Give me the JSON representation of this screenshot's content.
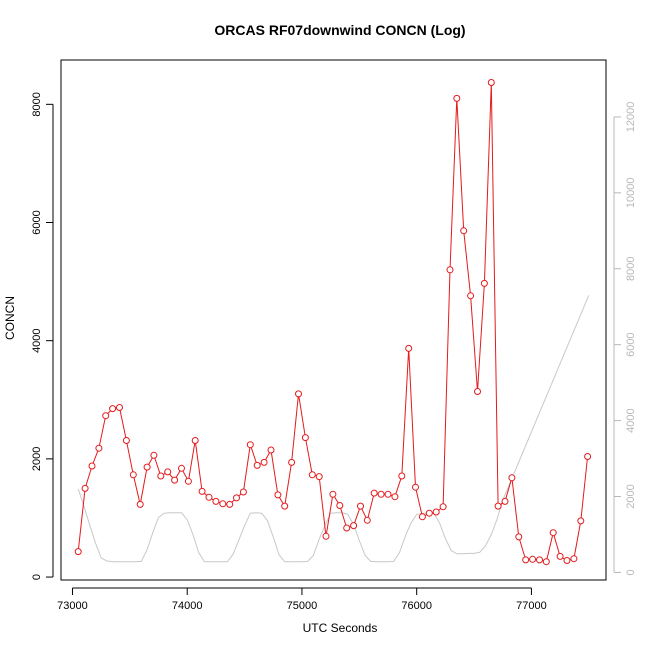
{
  "chart_data": {
    "type": "line",
    "title": "ORCAS RF07downwind CONCN (Log)",
    "xlabel": "UTC Seconds",
    "ylabel": "CONCN",
    "xlim": [
      72900,
      77650
    ],
    "ylim": [
      -50,
      8750
    ],
    "y2lim": [
      -200,
      13500
    ],
    "x_ticks": [
      73000,
      74000,
      75000,
      76000,
      77000
    ],
    "y_ticks": [
      0,
      2000,
      4000,
      6000,
      8000
    ],
    "y2_ticks": [
      0,
      2000,
      4000,
      6000,
      8000,
      10000,
      12000
    ],
    "grid": false,
    "legend": "none",
    "colors": {
      "primary": "#e41a1c",
      "secondary": "#c8c8c8",
      "axis": "#000000",
      "right_axis": "#b8b8b8"
    },
    "series": [
      {
        "axis": "left",
        "marker": "open-circle",
        "x": [
          73050,
          73110,
          73170,
          73230,
          73290,
          73350,
          73410,
          73470,
          73530,
          73590,
          73650,
          73710,
          73770,
          73830,
          73890,
          73950,
          74010,
          74070,
          74130,
          74190,
          74250,
          74310,
          74370,
          74430,
          74490,
          74550,
          74610,
          74670,
          74730,
          74790,
          74850,
          74910,
          74970,
          75030,
          75090,
          75150,
          75210,
          75270,
          75330,
          75390,
          75450,
          75510,
          75570,
          75630,
          75690,
          75750,
          75810,
          75870,
          75930,
          75990,
          76050,
          76110,
          76170,
          76230,
          76290,
          76350,
          76410,
          76470,
          76530,
          76590,
          76650,
          76710,
          76770,
          76830,
          76890,
          76950,
          77010,
          77070,
          77130,
          77190,
          77250,
          77310,
          77370,
          77430,
          77490
        ],
        "y": [
          430,
          1500,
          1880,
          2180,
          2730,
          2850,
          2870,
          2310,
          1730,
          1230,
          1860,
          2060,
          1710,
          1780,
          1640,
          1840,
          1620,
          2310,
          1450,
          1350,
          1280,
          1240,
          1230,
          1340,
          1440,
          2240,
          1890,
          1940,
          2150,
          1390,
          1200,
          1940,
          3100,
          2360,
          1730,
          1700,
          690,
          1400,
          1210,
          830,
          870,
          1200,
          960,
          1420,
          1400,
          1400,
          1360,
          1710,
          3870,
          1520,
          1020,
          1080,
          1100,
          1190,
          5200,
          8100,
          5860,
          4760,
          3140,
          4970,
          8370,
          1200,
          1280,
          1680,
          680,
          290,
          300,
          290,
          260,
          750,
          350,
          280,
          310,
          950,
          2040
        ]
      },
      {
        "axis": "right",
        "marker": "none",
        "x": [
          73050,
          73100,
          73150,
          73200,
          73250,
          73300,
          73350,
          73400,
          73450,
          73500,
          73550,
          73600,
          73650,
          73700,
          73750,
          73800,
          73850,
          73900,
          73950,
          74000,
          74050,
          74100,
          74150,
          74200,
          74250,
          74300,
          74350,
          74400,
          74450,
          74500,
          74550,
          74600,
          74650,
          74700,
          74750,
          74800,
          74850,
          74900,
          74950,
          75000,
          75050,
          75100,
          75150,
          75200,
          75250,
          75300,
          75350,
          75400,
          75450,
          75500,
          75550,
          75600,
          75650,
          75700,
          75750,
          75800,
          75850,
          75900,
          75950,
          76000,
          76050,
          76100,
          76150,
          76200,
          76250,
          76300,
          76350,
          76400,
          76450,
          76500,
          76550,
          76600,
          76650,
          76700,
          76750,
          77500
        ],
        "y": [
          2200,
          1750,
          1250,
          780,
          380,
          300,
          280,
          280,
          280,
          280,
          280,
          290,
          600,
          1050,
          1450,
          1560,
          1570,
          1570,
          1570,
          1390,
          1000,
          520,
          280,
          280,
          280,
          280,
          280,
          480,
          850,
          1230,
          1560,
          1570,
          1560,
          1360,
          930,
          470,
          280,
          280,
          280,
          280,
          290,
          450,
          880,
          1230,
          1560,
          1570,
          1570,
          1530,
          1260,
          840,
          450,
          290,
          280,
          280,
          280,
          290,
          520,
          950,
          1300,
          1530,
          1560,
          1560,
          1560,
          1300,
          890,
          580,
          490,
          490,
          500,
          500,
          530,
          700,
          1000,
          1400,
          1900,
          7300
        ]
      }
    ]
  }
}
